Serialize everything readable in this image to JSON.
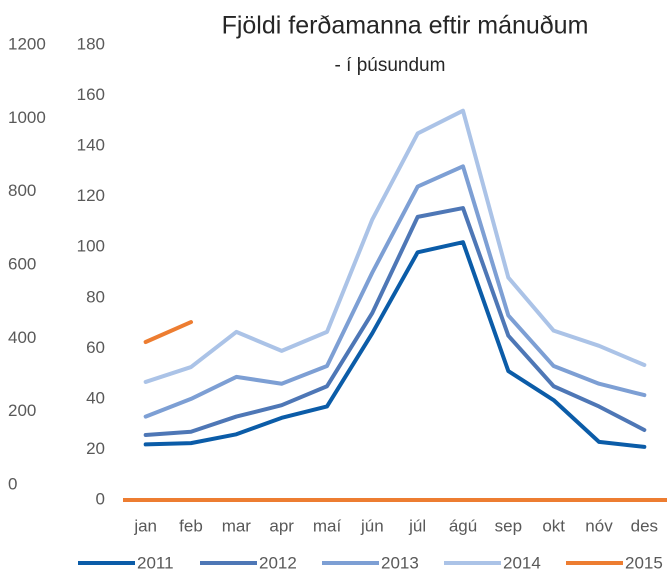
{
  "chart_data": {
    "type": "line",
    "title": "Fjöldi ferðamanna eftir mánuðum",
    "subtitle": "- í þúsundum",
    "categories": [
      "jan",
      "feb",
      "mar",
      "apr",
      "maí",
      "jún",
      "júl",
      "ágú",
      "sep",
      "okt",
      "nóv",
      "des"
    ],
    "ylim": [
      0,
      180
    ],
    "yticks": [
      0,
      20,
      40,
      60,
      80,
      100,
      120,
      140,
      160,
      180
    ],
    "y2lim": [
      0,
      1200
    ],
    "y2ticks": [
      0,
      200,
      400,
      600,
      800,
      1000,
      1200
    ],
    "legend": "bottom",
    "series": [
      {
        "name": "2011",
        "color": "#0b5ca8",
        "values": [
          22,
          22.5,
          26,
          32.5,
          37,
          66,
          98,
          102,
          51,
          39.5,
          23,
          21
        ]
      },
      {
        "name": "2012",
        "color": "#4e77b6",
        "values": [
          25.7,
          27,
          33,
          37.5,
          45,
          74,
          112,
          115.5,
          65,
          45,
          37,
          27.7
        ]
      },
      {
        "name": "2013",
        "color": "#7d9fd4",
        "values": [
          33,
          40,
          48.7,
          46,
          53,
          90,
          124,
          132,
          73,
          53,
          46,
          41.5
        ]
      },
      {
        "name": "2014",
        "color": "#abc3e7",
        "values": [
          46.7,
          52.6,
          66.5,
          59,
          66.5,
          111,
          145,
          154,
          88,
          67,
          61,
          53.4
        ]
      },
      {
        "name": "2015",
        "color": "#ed7d31",
        "values": [
          62.5,
          70.4,
          null,
          null,
          null,
          null,
          null,
          null,
          null,
          null,
          null,
          null
        ]
      }
    ]
  }
}
